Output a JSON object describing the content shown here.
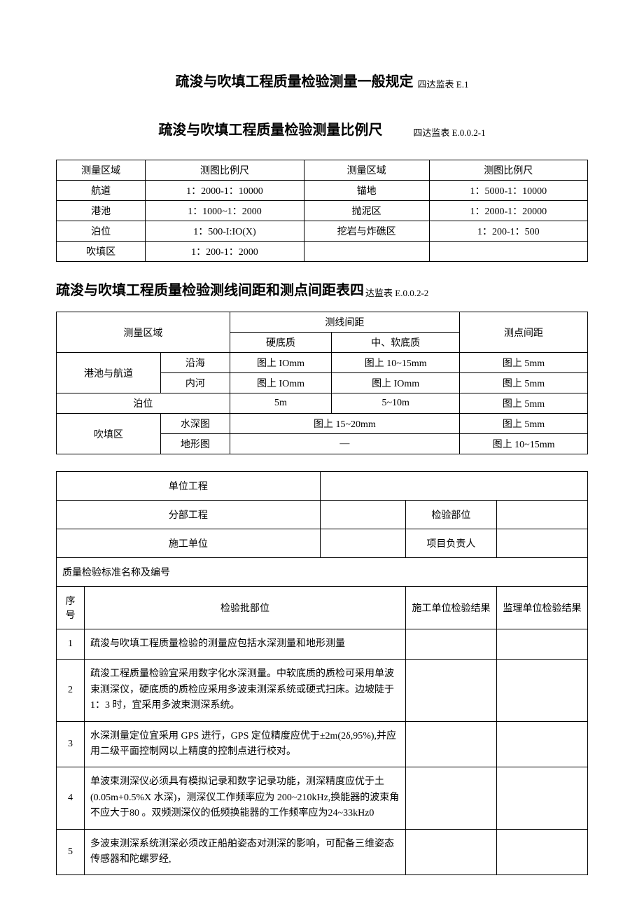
{
  "titles": {
    "t1": "疏浚与吹填工程质量检验测量一般规定",
    "t1_label": "四达监表 E.1",
    "t2": "疏浚与吹填工程质量检验测量比例尺",
    "t2_label": "四达监表 E.0.0.2-1",
    "t3": "疏浚与吹填工程质量检验测线间距和测点间距表四",
    "t3_label": "达监表 E.0.0.2-2"
  },
  "table1": {
    "headers": [
      "测量区域",
      "测图比例尺",
      "测量区域",
      "测图比例尺"
    ],
    "rows": [
      [
        "航道",
        "1：2000-1：10000",
        "锚地",
        "1：5000-1：10000"
      ],
      [
        "港池",
        "1：1000~1：2000",
        "抛泥区",
        "1：2000-1：20000"
      ],
      [
        "泊位",
        "1：500-I:IO(X)",
        "挖岩与炸礁区",
        "1：200-1：500"
      ],
      [
        "吹填区",
        "1：200-1：2000",
        "",
        ""
      ]
    ]
  },
  "table2": {
    "h_area": "测量区域",
    "h_line": "测线间距",
    "h_hard": "硬底质",
    "h_soft": "中、软底质",
    "h_point": "测点间距",
    "rows": [
      {
        "a1": "港池与航道",
        "a2": "沿海",
        "c1": "图上 IOmm",
        "c2": "图上 10~15mm",
        "p": "图上 5mm"
      },
      {
        "a2": "内河",
        "c1": "图上 IOmm",
        "c2": "图上 IOmm",
        "p": "图上 5mm"
      },
      {
        "a1": "泊位",
        "c1": "5m",
        "c2": "5~10m",
        "p": "图上 5mm"
      },
      {
        "a1": "吹填区",
        "a2": "水深图",
        "c12": "图上 15~20mm",
        "p": "图上 5mm"
      },
      {
        "a2": "地形图",
        "c12": "—",
        "p": "图上 10~15mm"
      }
    ]
  },
  "inspection": {
    "labels": {
      "unit_proj": "单位工程",
      "sub_proj": "分部工程",
      "insp_part": "检验部位",
      "constr_unit": "施工单位",
      "proj_leader": "项目负责人",
      "std_name": "质量检验标准名称及编号",
      "seq": "序号",
      "batch": "检验批部位",
      "constr_result": "施工单位检验结果",
      "super_result": "监理单位检验结果"
    },
    "items": [
      {
        "seq": "1",
        "desc": "疏浚与吹填工程质量检验的测量应包括水深测量和地形测量"
      },
      {
        "seq": "2",
        "desc": "疏浚工程质量检验宜采用数字化水深测量。中软底质的质检可采用单波束测深仪，硬底质的质检应采用多波束测深系统或硬式扫床。边坡陡于 1：3 时，宜采用多波束测深系统。"
      },
      {
        "seq": "3",
        "desc": "水深测量定位宜采用 GPS 进行，GPS 定位精度应优于±2m(2δ,95%),并应用二级平面控制网以上精度的控制点进行校对。"
      },
      {
        "seq": "4",
        "desc": "单波束测深仪必须具有模拟记录和数字记录功能，测深精度应优于土(0.05m+0.5%X 水深)，测深仪工作频率应为 200~210kHz,换能器的波束角不应大于80 。双频测深仪的低频换能器的工作频率应为24~33kHz0"
      },
      {
        "seq": "5",
        "desc": "多波束测深系统测深必须改正船舶姿态对测深的影响，可配备三维姿态传感器和陀螺罗经,"
      }
    ]
  }
}
